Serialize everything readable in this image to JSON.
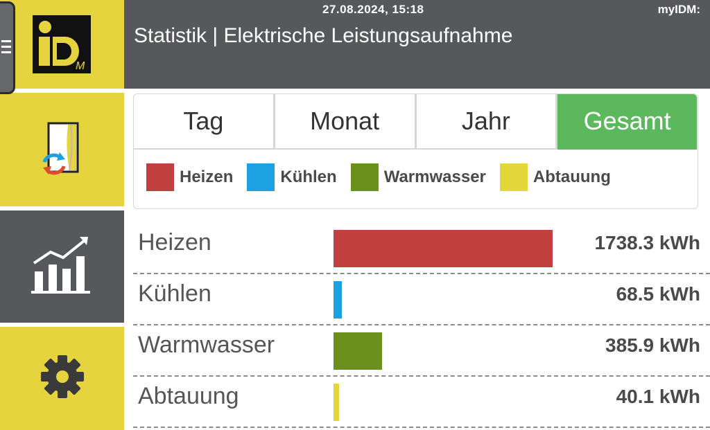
{
  "header": {
    "datetime": "27.08.2024, 15:18",
    "brand": "myIDM:",
    "title": "Statistik | Elektrische Leistungsaufnahme"
  },
  "sidebar": {
    "logo_text": "iDM",
    "items": [
      {
        "name": "heat-pump",
        "icon": "heat-pump-icon"
      },
      {
        "name": "statistics",
        "icon": "bar-chart-icon",
        "active": true
      },
      {
        "name": "settings",
        "icon": "gear-icon"
      }
    ]
  },
  "tabs": [
    {
      "label": "Tag",
      "active": false
    },
    {
      "label": "Monat",
      "active": false
    },
    {
      "label": "Jahr",
      "active": false
    },
    {
      "label": "Gesamt",
      "active": true
    }
  ],
  "legend": [
    {
      "label": "Heizen",
      "color": "#c0403f"
    },
    {
      "label": "Kühlen",
      "color": "#1da1e2"
    },
    {
      "label": "Warmwasser",
      "color": "#6b901c"
    },
    {
      "label": "Abtauung",
      "color": "#e3d63b"
    }
  ],
  "rows": [
    {
      "label": "Heizen",
      "value": "1738.3 kWh",
      "kwh": 1738.3,
      "color": "#c0403f"
    },
    {
      "label": "Kühlen",
      "value": "68.5 kWh",
      "kwh": 68.5,
      "color": "#1da1e2"
    },
    {
      "label": "Warmwasser",
      "value": "385.9 kWh",
      "kwh": 385.9,
      "color": "#6b901c"
    },
    {
      "label": "Abtauung",
      "value": "40.1 kWh",
      "kwh": 40.1,
      "color": "#e3d63b"
    }
  ],
  "colors": {
    "header_bg": "#57585b",
    "sidebar_yellow": "#e5d43d",
    "active_tab": "#5cb85c"
  }
}
